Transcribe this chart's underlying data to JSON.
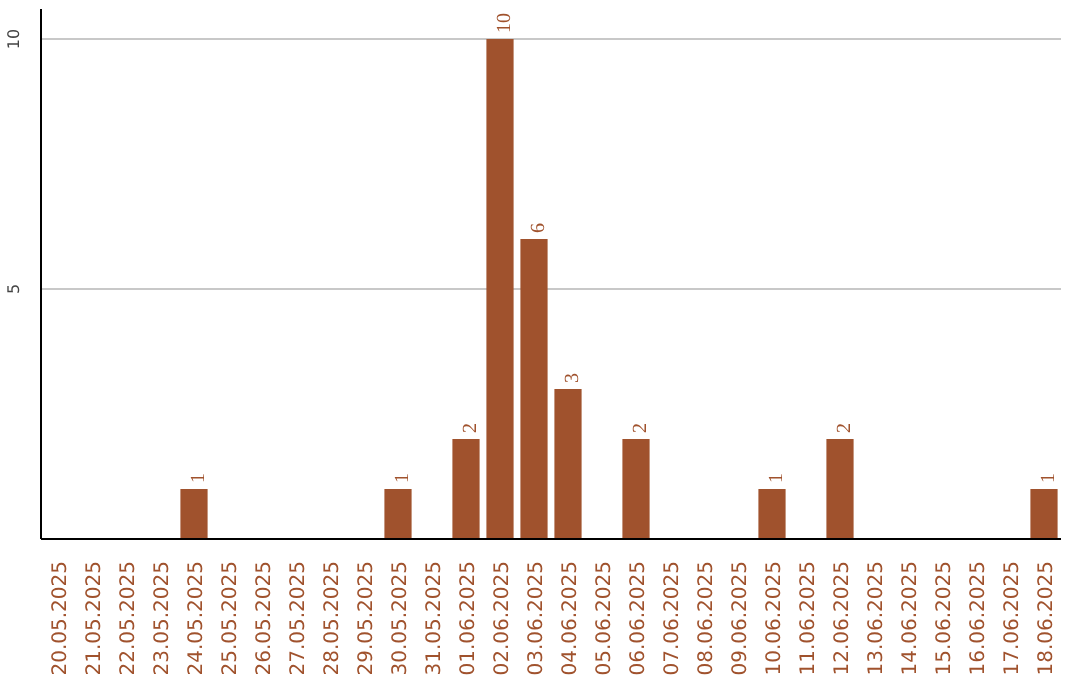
{
  "chart_data": {
    "type": "bar",
    "categories": [
      "20.05.2025",
      "21.05.2025",
      "22.05.2025",
      "23.05.2025",
      "24.05.2025",
      "25.05.2025",
      "26.05.2025",
      "27.05.2025",
      "28.05.2025",
      "29.05.2025",
      "30.05.2025",
      "31.05.2025",
      "01.06.2025",
      "02.06.2025",
      "03.06.2025",
      "04.06.2025",
      "05.06.2025",
      "06.06.2025",
      "07.06.2025",
      "08.06.2025",
      "09.06.2025",
      "10.06.2025",
      "11.06.2025",
      "12.06.2025",
      "13.06.2025",
      "14.06.2025",
      "15.06.2025",
      "16.06.2025",
      "17.06.2025",
      "18.06.2025"
    ],
    "values": [
      0,
      0,
      0,
      0,
      1,
      0,
      0,
      0,
      0,
      0,
      1,
      0,
      2,
      10,
      6,
      3,
      0,
      2,
      0,
      0,
      0,
      1,
      0,
      2,
      0,
      0,
      0,
      0,
      0,
      1
    ],
    "value_labels": [
      null,
      null,
      null,
      null,
      "1",
      null,
      null,
      null,
      null,
      null,
      "1",
      null,
      "2",
      "10",
      "6",
      "3",
      null,
      "2",
      null,
      null,
      null,
      "1",
      null,
      "2",
      null,
      null,
      null,
      null,
      null,
      "1"
    ],
    "color": "#a0522d",
    "ylim": [
      0,
      10.6
    ],
    "yticks": [
      5,
      10
    ],
    "grid": "y"
  }
}
